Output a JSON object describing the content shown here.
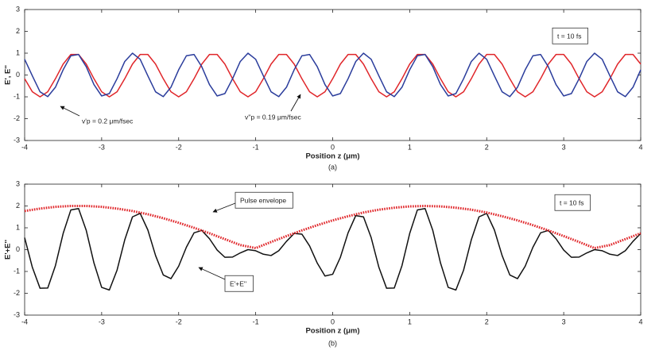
{
  "chart_data": [
    {
      "type": "line",
      "xlabel": "Position z (μm)",
      "ylabel": "E', E''",
      "caption": "(a)",
      "xlim": [
        -4,
        4
      ],
      "xticks": [
        -4,
        -3,
        -2,
        -1,
        0,
        1,
        2,
        3,
        4
      ],
      "ylim": [
        -3,
        3
      ],
      "yticks": [
        -3,
        -2,
        -1,
        0,
        1,
        2,
        3
      ],
      "annotations": [
        "t = 10 fs",
        "v'p = 0.2 μm/fsec",
        "v''p = 0.19 μm/fsec"
      ],
      "x": [
        -4,
        -3.9,
        -3.8,
        -3.7,
        -3.6,
        -3.5,
        -3.4,
        -3.3,
        -3.2,
        -3.1,
        -3,
        -2.9,
        -2.8,
        -2.7,
        -2.6,
        -2.5,
        -2.4,
        -2.3,
        -2.2,
        -2.1,
        -2,
        -1.9,
        -1.8,
        -1.7,
        -1.6,
        -1.5,
        -1.4,
        -1.3,
        -1.2,
        -1.1,
        -1,
        -0.9,
        -0.8,
        -0.7,
        -0.6,
        -0.5,
        -0.4,
        -0.3,
        -0.2,
        -0.1,
        0,
        0.1,
        0.2,
        0.3,
        0.4,
        0.5,
        0.6,
        0.7,
        0.8,
        0.9,
        1,
        1.1,
        1.2,
        1.3,
        1.4,
        1.5,
        1.6,
        1.7,
        1.8,
        1.9,
        2,
        2.1,
        2.2,
        2.3,
        2.4,
        2.5,
        2.6,
        2.7,
        2.8,
        2.9,
        3,
        3.1,
        3.2,
        3.3,
        3.4,
        3.5,
        3.6,
        3.7,
        3.8,
        3.9,
        4
      ],
      "series": [
        {
          "color": "#e0262a",
          "values": [
            -0.17,
            -0.77,
            -1,
            -0.77,
            -0.17,
            0.5,
            0.94,
            0.94,
            0.5,
            -0.17,
            -0.77,
            -1,
            -0.77,
            -0.17,
            0.5,
            0.94,
            0.94,
            0.5,
            -0.17,
            -0.77,
            -1,
            -0.77,
            -0.17,
            0.5,
            0.94,
            0.94,
            0.5,
            -0.17,
            -0.77,
            -1,
            -0.77,
            -0.17,
            0.5,
            0.94,
            0.94,
            0.5,
            -0.17,
            -0.77,
            -1,
            -0.77,
            -0.17,
            0.5,
            0.94,
            0.94,
            0.5,
            -0.17,
            -0.77,
            -1,
            -0.77,
            -0.17,
            0.5,
            0.94,
            0.94,
            0.5,
            -0.17,
            -0.77,
            -1,
            -0.77,
            -0.17,
            0.5,
            0.94,
            0.94,
            0.5,
            -0.17,
            -0.77,
            -1,
            -0.77,
            -0.17,
            0.5,
            0.94,
            0.94,
            0.5,
            -0.17,
            -0.77,
            -1,
            -0.77,
            -0.17,
            0.5,
            0.94,
            0.94,
            0.5
          ]
        },
        {
          "color": "#2b3d9c",
          "values": [
            0.72,
            -0.04,
            -0.77,
            -0.99,
            -0.56,
            0.24,
            0.88,
            0.94,
            0.38,
            -0.44,
            -0.96,
            -0.85,
            -0.17,
            0.62,
            1,
            0.72,
            -0.04,
            -0.77,
            -0.99,
            -0.56,
            0.24,
            0.88,
            0.94,
            0.38,
            -0.44,
            -0.96,
            -0.85,
            -0.17,
            0.62,
            1,
            0.72,
            -0.04,
            -0.77,
            -0.99,
            -0.56,
            0.24,
            0.88,
            0.94,
            0.38,
            -0.44,
            -0.96,
            -0.85,
            -0.17,
            0.62,
            1,
            0.72,
            -0.04,
            -0.77,
            -0.99,
            -0.56,
            0.24,
            0.88,
            0.94,
            0.38,
            -0.44,
            -0.96,
            -0.85,
            -0.17,
            0.62,
            1,
            0.72,
            -0.04,
            -0.77,
            -0.99,
            -0.56,
            0.24,
            0.88,
            0.94,
            0.38,
            -0.44,
            -0.96,
            -0.85,
            -0.17,
            0.62,
            1,
            0.72,
            -0.04,
            -0.77,
            -0.99,
            -0.56,
            0.24
          ]
        }
      ]
    },
    {
      "type": "line",
      "xlabel": "Position z (μm)",
      "ylabel": "E'+E''",
      "caption": "(b)",
      "xlim": [
        -4,
        4
      ],
      "xticks": [
        -4,
        -3,
        -2,
        -1,
        0,
        1,
        2,
        3,
        4
      ],
      "ylim": [
        -3,
        3
      ],
      "yticks": [
        -3,
        -2,
        -1,
        0,
        1,
        2,
        3
      ],
      "annotations": [
        "Pulse envelope",
        "t = 10 fs",
        "E'+E''"
      ],
      "x": [
        -4,
        -3.9,
        -3.8,
        -3.7,
        -3.6,
        -3.5,
        -3.4,
        -3.3,
        -3.2,
        -3.1,
        -3,
        -2.9,
        -2.8,
        -2.7,
        -2.6,
        -2.5,
        -2.4,
        -2.3,
        -2.2,
        -2.1,
        -2,
        -1.9,
        -1.8,
        -1.7,
        -1.6,
        -1.5,
        -1.4,
        -1.3,
        -1.2,
        -1.1,
        -1,
        -0.9,
        -0.8,
        -0.7,
        -0.6,
        -0.5,
        -0.4,
        -0.3,
        -0.2,
        -0.1,
        0,
        0.1,
        0.2,
        0.3,
        0.4,
        0.5,
        0.6,
        0.7,
        0.8,
        0.9,
        1,
        1.1,
        1.2,
        1.3,
        1.4,
        1.5,
        1.6,
        1.7,
        1.8,
        1.9,
        2,
        2.1,
        2.2,
        2.3,
        2.4,
        2.5,
        2.6,
        2.7,
        2.8,
        2.9,
        3,
        3.1,
        3.2,
        3.3,
        3.4,
        3.5,
        3.6,
        3.7,
        3.8,
        3.9,
        4
      ],
      "series": [
        {
          "color": "#111111",
          "values": [
            0.55,
            -0.81,
            -1.77,
            -1.76,
            -0.73,
            0.74,
            1.82,
            1.88,
            0.88,
            -0.61,
            -1.73,
            -1.85,
            -0.94,
            0.45,
            1.5,
            1.66,
            0.9,
            -0.27,
            -1.16,
            -1.33,
            -0.76,
            0.11,
            0.77,
            0.88,
            0.5,
            -0.02,
            -0.35,
            -0.34,
            -0.15,
            0,
            -0.05,
            -0.21,
            -0.27,
            -0.05,
            0.38,
            0.74,
            0.71,
            0.17,
            -0.62,
            -1.21,
            -1.13,
            -0.35,
            0.77,
            1.56,
            1.5,
            0.55,
            -0.81,
            -1.77,
            -1.76,
            -0.73,
            0.74,
            1.82,
            1.88,
            0.88,
            -0.61,
            -1.73,
            -1.85,
            -0.94,
            0.45,
            1.5,
            1.66,
            0.9,
            -0.27,
            -1.16,
            -1.33,
            -0.76,
            0.11,
            0.77,
            0.88,
            0.5,
            -0.02,
            -0.35,
            -0.34,
            -0.15,
            0,
            -0.05,
            -0.21,
            -0.27,
            -0.05,
            0.38,
            0.74
          ]
        },
        {
          "color": "#e0262a",
          "dash": "dotted",
          "x": [
            -4,
            -3.8,
            -3.6,
            -3.4,
            -3.2,
            -3,
            -2.8,
            -2.6,
            -2.4,
            -2.2,
            -2,
            -1.8,
            -1.6,
            -1.4,
            -1.2,
            -1,
            -0.8,
            -0.6,
            -0.4,
            -0.2,
            0,
            0.2,
            0.4,
            0.6,
            0.8,
            1,
            1.2,
            1.4,
            1.6,
            1.8,
            2,
            2.2,
            2.4,
            2.6,
            2.8,
            3,
            3.2,
            3.4,
            3.6,
            3.8,
            4
          ],
          "values": [
            1.77,
            1.88,
            1.96,
            2,
            2,
            1.96,
            1.88,
            1.77,
            1.62,
            1.44,
            1.23,
            1,
            0.75,
            0.48,
            0.21,
            0.07,
            0.35,
            0.62,
            0.88,
            1.12,
            1.34,
            1.53,
            1.7,
            1.83,
            1.92,
            1.98,
            2,
            1.98,
            1.92,
            1.83,
            1.7,
            1.53,
            1.34,
            1.12,
            0.88,
            0.62,
            0.35,
            0.07,
            0.21,
            0.48,
            0.75
          ]
        }
      ]
    }
  ]
}
